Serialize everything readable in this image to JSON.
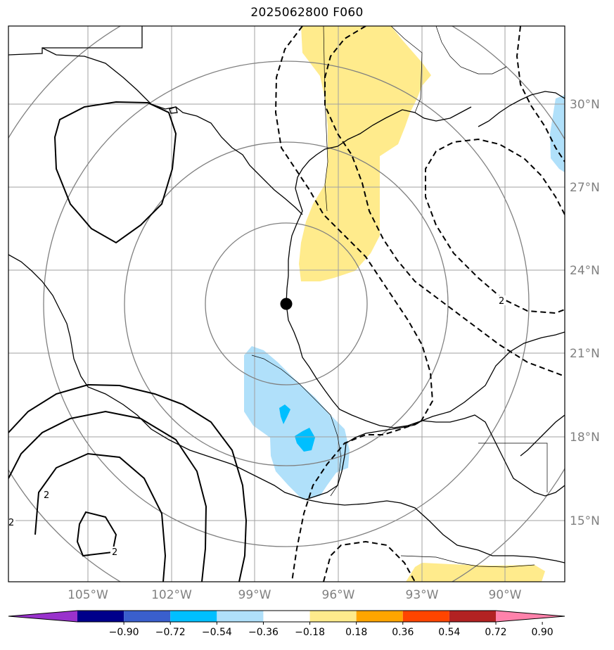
{
  "title": "2025062800 F060",
  "lat_labels": [
    "30°N",
    "27°N",
    "24°N",
    "21°N",
    "18°N",
    "15°N"
  ],
  "lon_labels": [
    "105°W",
    "102°W",
    "99°W",
    "96°W",
    "93°W",
    "90°W"
  ],
  "colorbar": {
    "ticks": [
      "−0.90",
      "−0.72",
      "−0.54",
      "−0.36",
      "−0.18",
      "0.18",
      "0.36",
      "0.54",
      "0.72",
      "0.90"
    ],
    "colors": [
      "#9932cc",
      "#00008b",
      "#3a5fcd",
      "#00bfff",
      "#b0e0fa",
      "#ffffff",
      "#ffeb8c",
      "#ffa500",
      "#ff4500",
      "#b22222",
      "#ff82ab"
    ]
  },
  "contour_labels": [
    "2",
    "2",
    "2",
    "2"
  ],
  "center_marker": "storm-center-dot",
  "colors": {
    "grid": "#a0a0a0",
    "rings": "#808080",
    "coast": "#000000",
    "positive_fill": "#ffeb8c",
    "negative_fill_light": "#b0e0fa",
    "negative_fill_dark": "#00bfff"
  }
}
